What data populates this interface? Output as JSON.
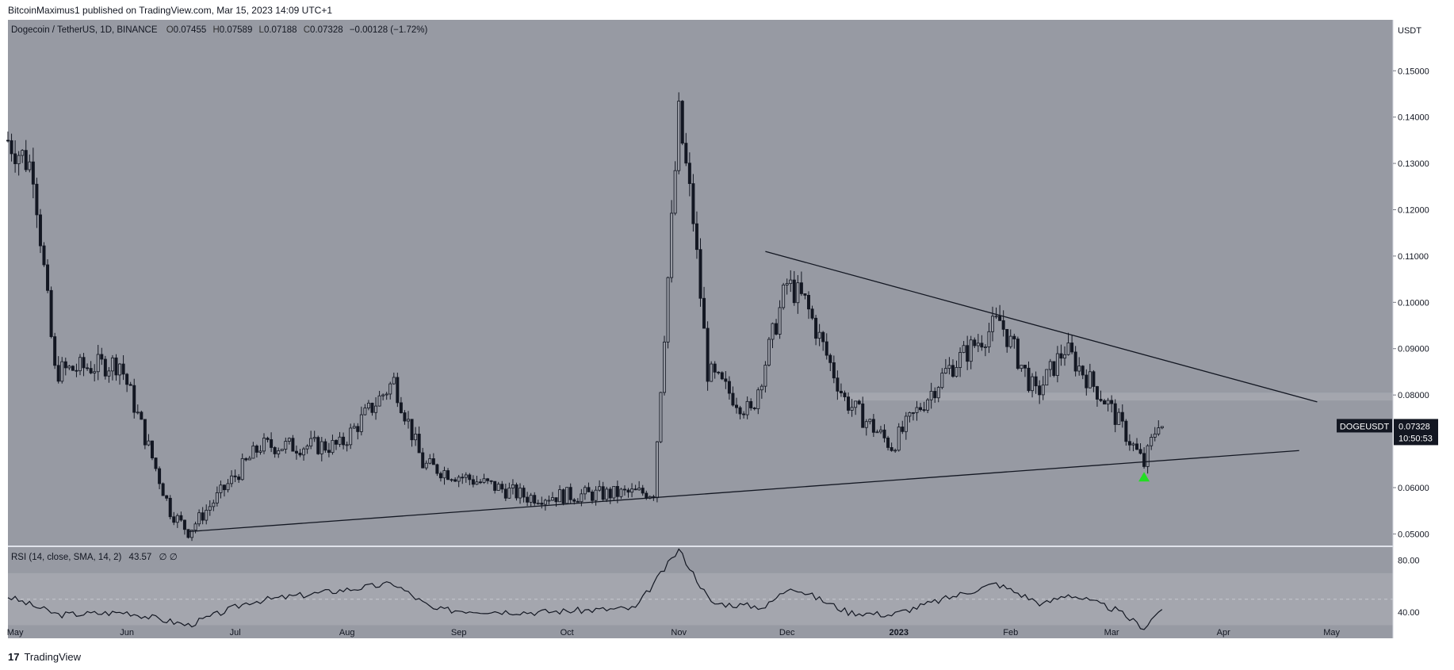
{
  "header": {
    "published": "BitcoinMaximus1 published on TradingView.com, Mar 15, 2023 14:09 UTC+1"
  },
  "legend": {
    "symbol": "Dogecoin / TetherUS, 1D, BINANCE",
    "o_label": "O",
    "o_value": "0.07455",
    "h_label": "H",
    "h_value": "0.07589",
    "l_label": "L",
    "l_value": "0.07188",
    "c_label": "C",
    "c_value": "0.07328",
    "change": "−0.00128 (−1.72%)"
  },
  "rsi_legend": {
    "label": "RSI (14, close, SMA, 14, 2)",
    "value": "43.57",
    "extra": "∅ ∅"
  },
  "price_tag": {
    "symbol": "DOGEUSDT",
    "price": "0.07328",
    "countdown": "10:50:53"
  },
  "footer": {
    "brand": "TradingView"
  },
  "colors": {
    "pane_bg": "#979aa3",
    "band": "#a4a6ae",
    "candle": "#131722",
    "marker": "#22dd22"
  },
  "chart_data": {
    "type": "candlestick",
    "y_unit": "USDT",
    "y_ticks": [
      "0.15000",
      "0.14000",
      "0.13000",
      "0.12000",
      "0.11000",
      "0.10000",
      "0.09000",
      "0.08000",
      "0.06000",
      "0.05000"
    ],
    "x_ticks": [
      "May",
      "Jun",
      "Jul",
      "Aug",
      "Sep",
      "Oct",
      "Nov",
      "Dec",
      "2023",
      "Feb",
      "Mar",
      "Apr",
      "May"
    ],
    "x_range": [
      "2022-04-29",
      "2023-05-18"
    ],
    "y_range": [
      0.0475,
      0.161
    ],
    "key_points": [
      {
        "date": "2022-04-29",
        "close": 0.135
      },
      {
        "date": "2022-05-06",
        "close": 0.129
      },
      {
        "date": "2022-05-12",
        "close": 0.085
      },
      {
        "date": "2022-05-30",
        "close": 0.087
      },
      {
        "date": "2022-06-13",
        "close": 0.055
      },
      {
        "date": "2022-06-18",
        "close": 0.0505
      },
      {
        "date": "2022-07-08",
        "close": 0.069
      },
      {
        "date": "2022-07-30",
        "close": 0.069
      },
      {
        "date": "2022-08-14",
        "close": 0.083
      },
      {
        "date": "2022-08-22",
        "close": 0.065
      },
      {
        "date": "2022-09-20",
        "close": 0.058
      },
      {
        "date": "2022-10-25",
        "close": 0.059
      },
      {
        "date": "2022-11-01",
        "close": 0.14
      },
      {
        "date": "2022-11-05",
        "close": 0.118
      },
      {
        "date": "2022-11-09",
        "close": 0.085
      },
      {
        "date": "2022-11-21",
        "close": 0.076
      },
      {
        "date": "2022-12-01",
        "close": 0.104
      },
      {
        "date": "2022-12-06",
        "close": 0.1
      },
      {
        "date": "2022-12-17",
        "close": 0.079
      },
      {
        "date": "2022-12-30",
        "close": 0.069
      },
      {
        "date": "2023-01-14",
        "close": 0.085
      },
      {
        "date": "2023-01-29",
        "close": 0.096
      },
      {
        "date": "2023-02-08",
        "close": 0.08
      },
      {
        "date": "2023-02-16",
        "close": 0.09
      },
      {
        "date": "2023-02-28",
        "close": 0.078
      },
      {
        "date": "2023-03-10",
        "close": 0.065
      },
      {
        "date": "2023-03-14",
        "close": 0.07455
      },
      {
        "date": "2023-03-15",
        "close": 0.07328
      }
    ],
    "trendlines": [
      {
        "from": {
          "date": "2022-06-18",
          "value": 0.0505
        },
        "to": {
          "date": "2023-04-22",
          "value": 0.068
        }
      },
      {
        "from": {
          "date": "2022-11-25",
          "value": 0.111
        },
        "to": {
          "date": "2023-04-27",
          "value": 0.0785
        }
      }
    ],
    "resistance_zone": [
      0.0788,
      0.0805
    ],
    "marker": {
      "date": "2023-03-10",
      "value": 0.062,
      "shape": "triangle-up"
    },
    "rsi": {
      "y_ticks": [
        "80.00",
        "40.00"
      ],
      "range": [
        20,
        90
      ],
      "band": [
        30,
        70
      ],
      "key_points": [
        {
          "date": "2022-04-29",
          "value": 52
        },
        {
          "date": "2022-05-13",
          "value": 38
        },
        {
          "date": "2022-06-01",
          "value": 40
        },
        {
          "date": "2022-06-18",
          "value": 30
        },
        {
          "date": "2022-07-05",
          "value": 48
        },
        {
          "date": "2022-08-14",
          "value": 62
        },
        {
          "date": "2022-08-25",
          "value": 42
        },
        {
          "date": "2022-09-22",
          "value": 40
        },
        {
          "date": "2022-10-20",
          "value": 43
        },
        {
          "date": "2022-11-01",
          "value": 88
        },
        {
          "date": "2022-11-10",
          "value": 47
        },
        {
          "date": "2022-11-25",
          "value": 44
        },
        {
          "date": "2022-12-02",
          "value": 60
        },
        {
          "date": "2022-12-18",
          "value": 40
        },
        {
          "date": "2022-12-30",
          "value": 38
        },
        {
          "date": "2023-01-28",
          "value": 62
        },
        {
          "date": "2023-02-10",
          "value": 46
        },
        {
          "date": "2023-02-17",
          "value": 54
        },
        {
          "date": "2023-03-02",
          "value": 42
        },
        {
          "date": "2023-03-10",
          "value": 28
        },
        {
          "date": "2023-03-15",
          "value": 43.57
        }
      ]
    }
  }
}
